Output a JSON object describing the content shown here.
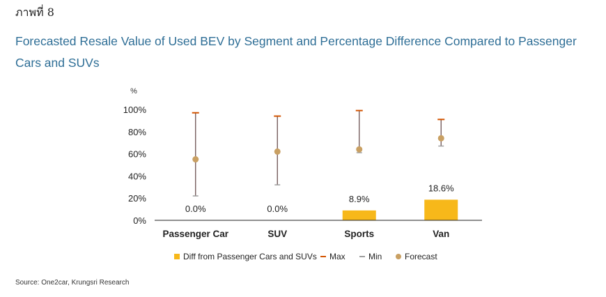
{
  "figure_label": "ภาพที่ 8",
  "title": "Forecasted Resale Value of Used BEV by Segment and Percentage Difference Compared to Passenger Cars and SUVs",
  "source": "Source: One2car, Krungsri Research",
  "colors": {
    "title": "#2e6e96",
    "bar": "#f7b81a",
    "max": "#d35400",
    "min": "#9e9e9e",
    "forecast": "#c9a063",
    "whisker": "#6b5050"
  },
  "chart_data": {
    "type": "bar",
    "yunit": "%",
    "ylim": [
      0,
      100
    ],
    "yticks": [
      "0%",
      "20%",
      "40%",
      "60%",
      "80%",
      "100%"
    ],
    "ytick_values": [
      0,
      20,
      40,
      60,
      80,
      100
    ],
    "categories": [
      "Passenger Car",
      "SUV",
      "Sports",
      "Van"
    ],
    "series": [
      {
        "name": "Diff from Passenger Cars and SUVs",
        "type": "bar",
        "values": [
          0.0,
          0.0,
          8.9,
          18.6
        ],
        "labels": [
          "0.0%",
          "0.0%",
          "8.9%",
          "18.6%"
        ]
      },
      {
        "name": "Max",
        "type": "marker",
        "values": [
          97,
          94,
          99,
          91
        ]
      },
      {
        "name": "Min",
        "type": "marker",
        "values": [
          22,
          32,
          61,
          67
        ]
      },
      {
        "name": "Forecast",
        "type": "scatter",
        "values": [
          55,
          62,
          64,
          74
        ]
      }
    ],
    "legend_position": "bottom",
    "grid": false
  }
}
